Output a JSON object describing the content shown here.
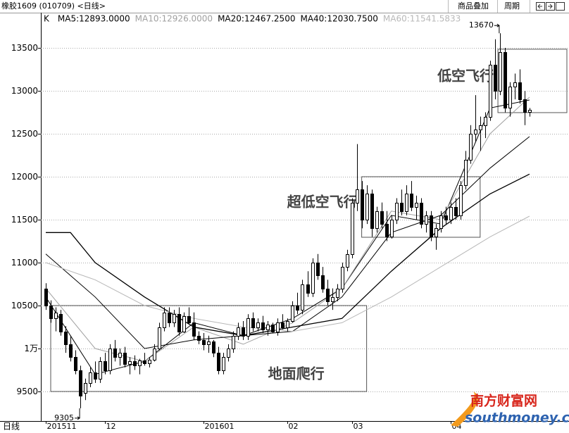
{
  "header": {
    "title": "橡胶1609 (010709) <日线>",
    "buttons": [
      "商品叠加",
      "周期"
    ]
  },
  "chart_data": {
    "type": "candlestick",
    "indicator": "K",
    "period": "日线",
    "ylim": [
      9156,
      13893
    ],
    "yticks": [
      9500,
      {
        "value": 10000,
        "label": "1万"
      },
      10500,
      11000,
      11500,
      12000,
      12500,
      13000,
      13500
    ],
    "xlim": [
      -1,
      106
    ],
    "xticks": [
      {
        "value": 0,
        "label": "201511"
      },
      {
        "value": 12,
        "label": "12"
      },
      {
        "value": 32,
        "label": "201601"
      },
      {
        "value": 49,
        "label": "02"
      },
      {
        "value": 62,
        "label": "03"
      },
      {
        "value": 82,
        "label": "04"
      }
    ],
    "grid": true,
    "ohlc": [
      [
        10700,
        10760,
        10450,
        10500
      ],
      [
        10500,
        10560,
        10300,
        10350
      ],
      [
        10350,
        10480,
        10200,
        10420
      ],
      [
        10400,
        10450,
        10150,
        10200
      ],
      [
        10200,
        10260,
        9950,
        10050
      ],
      [
        10050,
        10150,
        9850,
        9900
      ],
      [
        9900,
        9980,
        9700,
        9750
      ],
      [
        9750,
        9800,
        9305,
        9450
      ],
      [
        9480,
        9650,
        9400,
        9600
      ],
      [
        9600,
        9780,
        9550,
        9720
      ],
      [
        9720,
        9850,
        9600,
        9650
      ],
      [
        9650,
        9900,
        9600,
        9850
      ],
      [
        9850,
        9950,
        9700,
        9750
      ],
      [
        9750,
        10050,
        9700,
        10000
      ],
      [
        10000,
        10100,
        9850,
        9900
      ],
      [
        9900,
        10000,
        9800,
        9950
      ],
      [
        9950,
        10020,
        9780,
        9820
      ],
      [
        9820,
        9900,
        9700,
        9850
      ],
      [
        9850,
        9920,
        9750,
        9800
      ],
      [
        9800,
        9880,
        9700,
        9860
      ],
      [
        9860,
        9950,
        9800,
        9830
      ],
      [
        9830,
        9900,
        9780,
        9870
      ],
      [
        9870,
        10050,
        9850,
        10000
      ],
      [
        10000,
        10300,
        9980,
        10250
      ],
      [
        10250,
        10480,
        10200,
        10420
      ],
      [
        10420,
        10480,
        10250,
        10300
      ],
      [
        10300,
        10450,
        10250,
        10400
      ],
      [
        10400,
        10480,
        10150,
        10200
      ],
      [
        10200,
        10420,
        10180,
        10380
      ],
      [
        10380,
        10480,
        10280,
        10300
      ],
      [
        10300,
        10420,
        10100,
        10150
      ],
      [
        10150,
        10200,
        10050,
        10100
      ],
      [
        10100,
        10180,
        9980,
        10050
      ],
      [
        10050,
        10150,
        9950,
        10080
      ],
      [
        10080,
        10100,
        9900,
        9950
      ],
      [
        9950,
        10020,
        9700,
        9750
      ],
      [
        9750,
        9950,
        9700,
        9900
      ],
      [
        9900,
        10050,
        9850,
        10000
      ],
      [
        10000,
        10200,
        9950,
        10150
      ],
      [
        10150,
        10300,
        10100,
        10250
      ],
      [
        10250,
        10320,
        10100,
        10150
      ],
      [
        10150,
        10400,
        10100,
        10350
      ],
      [
        10350,
        10420,
        10200,
        10250
      ],
      [
        10250,
        10350,
        10200,
        10300
      ],
      [
        10300,
        10380,
        10180,
        10220
      ],
      [
        10220,
        10320,
        10150,
        10280
      ],
      [
        10280,
        10300,
        10180,
        10200
      ],
      [
        10200,
        10350,
        10150,
        10300
      ],
      [
        10300,
        10400,
        10220,
        10250
      ],
      [
        10250,
        10350,
        10200,
        10320
      ],
      [
        10320,
        10550,
        10300,
        10500
      ],
      [
        10500,
        10650,
        10400,
        10450
      ],
      [
        10450,
        10800,
        10400,
        10750
      ],
      [
        10750,
        10900,
        10600,
        10650
      ],
      [
        10650,
        11050,
        10600,
        11000
      ],
      [
        11000,
        11100,
        10800,
        10850
      ],
      [
        10850,
        10950,
        10650,
        10700
      ],
      [
        10700,
        10800,
        10500,
        10550
      ],
      [
        10550,
        10700,
        10450,
        10600
      ],
      [
        10600,
        10750,
        10550,
        10700
      ],
      [
        10700,
        11000,
        10650,
        10950
      ],
      [
        10950,
        11150,
        10900,
        11100
      ],
      [
        11100,
        11750,
        11050,
        11700
      ],
      [
        11700,
        12380,
        11600,
        11850
      ],
      [
        11850,
        11950,
        11400,
        11500
      ],
      [
        11500,
        11900,
        11450,
        11800
      ],
      [
        11800,
        11850,
        11300,
        11400
      ],
      [
        11400,
        11650,
        11350,
        11600
      ],
      [
        11600,
        11700,
        11400,
        11450
      ],
      [
        11450,
        11600,
        11250,
        11300
      ],
      [
        11300,
        11550,
        11280,
        11500
      ],
      [
        11500,
        11750,
        11450,
        11700
      ],
      [
        11700,
        11850,
        11550,
        11600
      ],
      [
        11600,
        11900,
        11550,
        11800
      ],
      [
        11800,
        11950,
        11600,
        11650
      ],
      [
        11650,
        11780,
        11500,
        11700
      ],
      [
        11700,
        11750,
        11400,
        11450
      ],
      [
        11450,
        11600,
        11350,
        11550
      ],
      [
        11550,
        11600,
        11250,
        11300
      ],
      [
        11300,
        11450,
        11150,
        11400
      ],
      [
        11400,
        11600,
        11350,
        11550
      ],
      [
        11550,
        11650,
        11450,
        11500
      ],
      [
        11500,
        11700,
        11450,
        11650
      ],
      [
        11650,
        11750,
        11500,
        11550
      ],
      [
        11550,
        11950,
        11500,
        11900
      ],
      [
        11900,
        12300,
        11850,
        12200
      ],
      [
        12200,
        12600,
        12150,
        12500
      ],
      [
        12500,
        12950,
        12400,
        12550
      ],
      [
        12550,
        12700,
        12300,
        12600
      ],
      [
        12600,
        12750,
        12450,
        12700
      ],
      [
        12700,
        13350,
        12650,
        13300
      ],
      [
        13300,
        13600,
        12900,
        13000
      ],
      [
        13000,
        13670,
        12950,
        13450
      ],
      [
        13450,
        13500,
        12750,
        12800
      ],
      [
        12800,
        13100,
        12700,
        13050
      ],
      [
        13050,
        13200,
        12900,
        13100
      ],
      [
        13100,
        13250,
        12850,
        12900
      ],
      [
        12900,
        13000,
        12600,
        12750
      ],
      [
        12750,
        12800,
        12700,
        12780
      ]
    ],
    "series": [
      {
        "name": "MA5",
        "legend": "MA5:12893.0000",
        "color": "#000000",
        "x": [
          0,
          10,
          20,
          30,
          40,
          50,
          60,
          70,
          80,
          90,
          98
        ],
        "values": [
          10600,
          9700,
          9850,
          10300,
          10150,
          10350,
          10700,
          11550,
          11450,
          12800,
          12893
        ]
      },
      {
        "name": "MA10",
        "legend": "MA10:12926.0000",
        "color": "#a0a0a0",
        "x": [
          0,
          10,
          20,
          30,
          40,
          50,
          60,
          70,
          80,
          90,
          98
        ],
        "values": [
          10700,
          10000,
          9850,
          10250,
          10050,
          10300,
          10700,
          11600,
          11500,
          12500,
          12926
        ]
      },
      {
        "name": "MA20",
        "legend": "MA20:12467.2500",
        "color": "#000000",
        "x": [
          0,
          10,
          20,
          30,
          40,
          50,
          60,
          70,
          80,
          90,
          98
        ],
        "values": [
          11100,
          10600,
          10000,
          10100,
          10150,
          10200,
          10600,
          11350,
          11550,
          12100,
          12467
        ]
      },
      {
        "name": "MA40",
        "legend": "MA40:12030.7500",
        "color": "#000000",
        "x": [
          0,
          5,
          10,
          20,
          30,
          40,
          50,
          60,
          70,
          80,
          90,
          98
        ],
        "values": [
          11350,
          11350,
          11000,
          10600,
          10250,
          10150,
          10250,
          10350,
          10900,
          11400,
          11800,
          12030
        ]
      },
      {
        "name": "MA60",
        "legend": "MA60:11541.5833",
        "color": "#b8b8b8",
        "x": [
          0,
          10,
          20,
          30,
          40,
          50,
          60,
          70,
          80,
          90,
          98
        ],
        "values": [
          11000,
          10800,
          10500,
          10350,
          10250,
          10200,
          10300,
          10600,
          10950,
          11300,
          11541
        ]
      }
    ],
    "extremes": [
      {
        "value": 13670,
        "x": 92,
        "side": "above"
      },
      {
        "value": 9305,
        "x": 7,
        "side": "below"
      }
    ],
    "annotations": [
      {
        "text": "地面爬行",
        "x": [
          1,
          65
        ],
        "y": [
          9500,
          10500
        ],
        "label_position": "inside"
      },
      {
        "text": "超低空飞行",
        "x": [
          64,
          88
        ],
        "y": [
          11295,
          12000
        ],
        "label_position": "left"
      },
      {
        "text": "低空飞行",
        "x": [
          91.6,
          106
        ],
        "y": [
          12746,
          13484
        ],
        "label_position": "left"
      }
    ]
  },
  "watermark": {
    "name": "南方财富网",
    "site": "southmoney.com"
  }
}
